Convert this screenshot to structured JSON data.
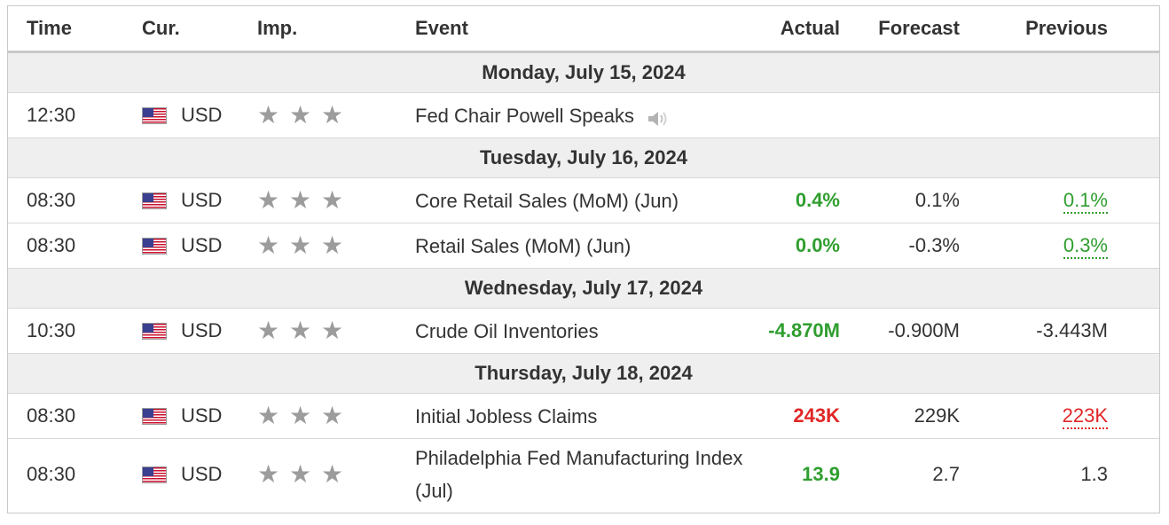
{
  "columns": {
    "time": "Time",
    "currency": "Cur.",
    "importance": "Imp.",
    "event": "Event",
    "actual": "Actual",
    "forecast": "Forecast",
    "previous": "Previous"
  },
  "days": [
    {
      "date": "Monday, July 15, 2024",
      "events": [
        {
          "time": "12:30",
          "currency": "USD",
          "importance": 3,
          "event": "Fed Chair Powell Speaks",
          "speech": true,
          "actual": "",
          "actual_status": "",
          "forecast": "",
          "previous": "",
          "previous_status": ""
        }
      ]
    },
    {
      "date": "Tuesday, July 16, 2024",
      "events": [
        {
          "time": "08:30",
          "currency": "USD",
          "importance": 3,
          "event": "Core Retail Sales (MoM) (Jun)",
          "actual": "0.4%",
          "actual_status": "better",
          "forecast": "0.1%",
          "previous": "0.1%",
          "previous_status": "revised-up"
        },
        {
          "time": "08:30",
          "currency": "USD",
          "importance": 3,
          "event": "Retail Sales (MoM) (Jun)",
          "actual": "0.0%",
          "actual_status": "better",
          "forecast": "-0.3%",
          "previous": "0.3%",
          "previous_status": "revised-up"
        }
      ]
    },
    {
      "date": "Wednesday, July 17, 2024",
      "events": [
        {
          "time": "10:30",
          "currency": "USD",
          "importance": 3,
          "event": "Crude Oil Inventories",
          "actual": "-4.870M",
          "actual_status": "better",
          "forecast": "-0.900M",
          "previous": "-3.443M",
          "previous_status": ""
        }
      ]
    },
    {
      "date": "Thursday, July 18, 2024",
      "events": [
        {
          "time": "08:30",
          "currency": "USD",
          "importance": 3,
          "event": "Initial Jobless Claims",
          "actual": "243K",
          "actual_status": "worse",
          "forecast": "229K",
          "previous": "223K",
          "previous_status": "revised-down"
        },
        {
          "time": "08:30",
          "currency": "USD",
          "importance": 3,
          "event": "Philadelphia Fed Manufacturing Index (Jul)",
          "actual": "13.9",
          "actual_status": "better",
          "forecast": "2.7",
          "previous": "1.3",
          "previous_status": ""
        }
      ]
    }
  ],
  "colors": {
    "better": "#2f9e2f",
    "worse": "#e12626",
    "star": "#9c9c9c",
    "day_row_bg": "#efefef",
    "border": "#c9c9c9"
  },
  "icons": {
    "currency_flag": "us-flag-icon",
    "importance": "star-icon",
    "speech": "speaker-icon"
  }
}
